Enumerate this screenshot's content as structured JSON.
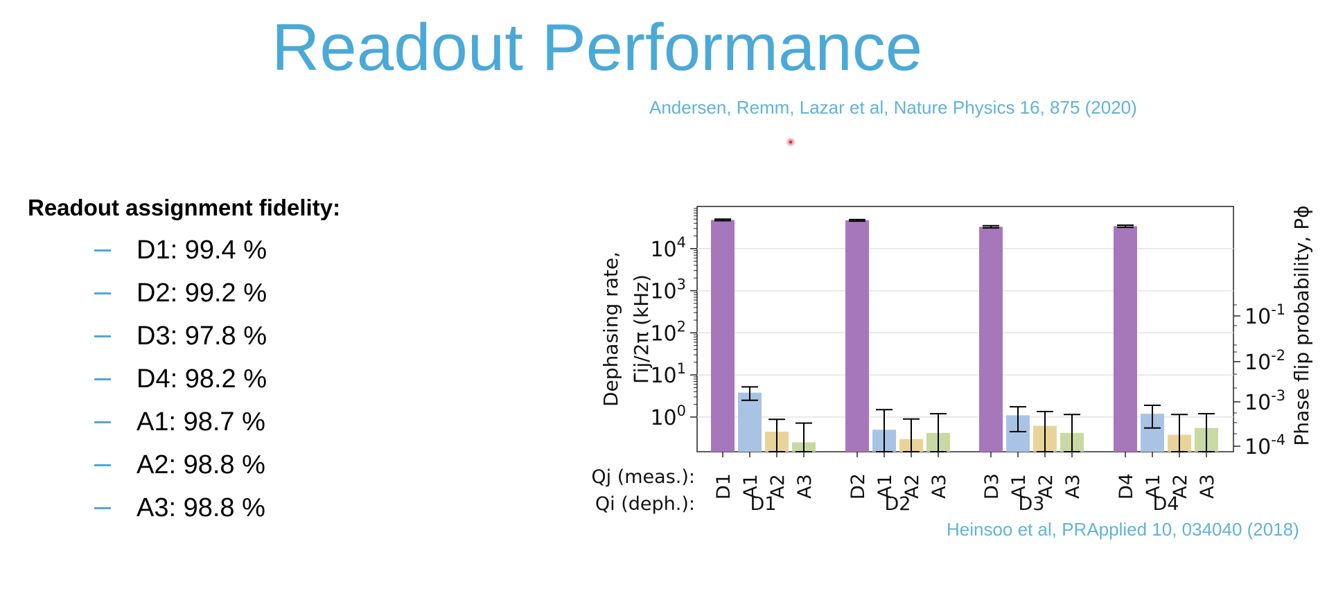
{
  "slide": {
    "title": "Readout Performance",
    "citation_top": "Andersen, Remm, Lazar et al, Nature Physics 16, 875 (2020)",
    "citation_bottom": "Heinsoo et al, PRApplied 10, 034040 (2018)"
  },
  "fidelity": {
    "heading": "Readout assignment fidelity:",
    "items": [
      {
        "label": "D1: 99.4 %"
      },
      {
        "label": "D2: 99.2 %"
      },
      {
        "label": "D3: 97.8 %"
      },
      {
        "label": "D4: 98.2 %"
      },
      {
        "label": "A1: 98.7 %"
      },
      {
        "label": "A2: 98.8 %"
      },
      {
        "label": "A3: 98.8 %"
      }
    ]
  },
  "chart_data": {
    "type": "bar",
    "y_scale": "log",
    "ylim": [
      0.15,
      100000
    ],
    "yticks": [
      "10^0",
      "10^1",
      "10^2",
      "10^3",
      "10^4"
    ],
    "ylabel_line1": "Dephasing rate,",
    "ylabel_line2": "Γ̄ij/2π (kHz)",
    "y2label": "Phase flip probability, Pϕ",
    "y2ticks": [
      "10^-1",
      "10^-2",
      "10^-3",
      "10^-4"
    ],
    "row_label_meas": "Qj (meas.):",
    "row_label_deph": "Qi (deph.):",
    "grid": true,
    "colors": {
      "D": "#a777bb",
      "A1": "#a9c3e4",
      "A2": "#e8d49a",
      "A3": "#c8d9a3",
      "errorbar": "#000000",
      "grid": "#e3e3e3"
    },
    "groups": [
      {
        "name": "D1",
        "bars": [
          {
            "label": "D1",
            "value": 48000,
            "err_low": 46000,
            "err_high": 50000
          },
          {
            "label": "A1",
            "value": 3.8,
            "err_low": 2.5,
            "err_high": 5.2
          },
          {
            "label": "A2",
            "value": 0.45,
            "err_low": 0.15,
            "err_high": 0.88
          },
          {
            "label": "A3",
            "value": 0.25,
            "err_low": 0.15,
            "err_high": 0.72
          }
        ]
      },
      {
        "name": "D2",
        "bars": [
          {
            "label": "D2",
            "value": 47000,
            "err_low": 45000,
            "err_high": 49000
          },
          {
            "label": "A1",
            "value": 0.5,
            "err_low": 0.15,
            "err_high": 1.5
          },
          {
            "label": "A2",
            "value": 0.3,
            "err_low": 0.15,
            "err_high": 0.9
          },
          {
            "label": "A3",
            "value": 0.42,
            "err_low": 0.15,
            "err_high": 1.2
          }
        ]
      },
      {
        "name": "D3",
        "bars": [
          {
            "label": "D3",
            "value": 33000,
            "err_low": 31000,
            "err_high": 35000
          },
          {
            "label": "A1",
            "value": 1.1,
            "err_low": 0.45,
            "err_high": 1.75
          },
          {
            "label": "A2",
            "value": 0.62,
            "err_low": 0.15,
            "err_high": 1.35
          },
          {
            "label": "A3",
            "value": 0.42,
            "err_low": 0.15,
            "err_high": 1.15
          }
        ]
      },
      {
        "name": "D4",
        "bars": [
          {
            "label": "D4",
            "value": 34000,
            "err_low": 32000,
            "err_high": 36000
          },
          {
            "label": "A1",
            "value": 1.2,
            "err_low": 0.55,
            "err_high": 1.9
          },
          {
            "label": "A2",
            "value": 0.38,
            "err_low": 0.15,
            "err_high": 1.15
          },
          {
            "label": "A3",
            "value": 0.55,
            "err_low": 0.15,
            "err_high": 1.2
          }
        ]
      }
    ]
  }
}
